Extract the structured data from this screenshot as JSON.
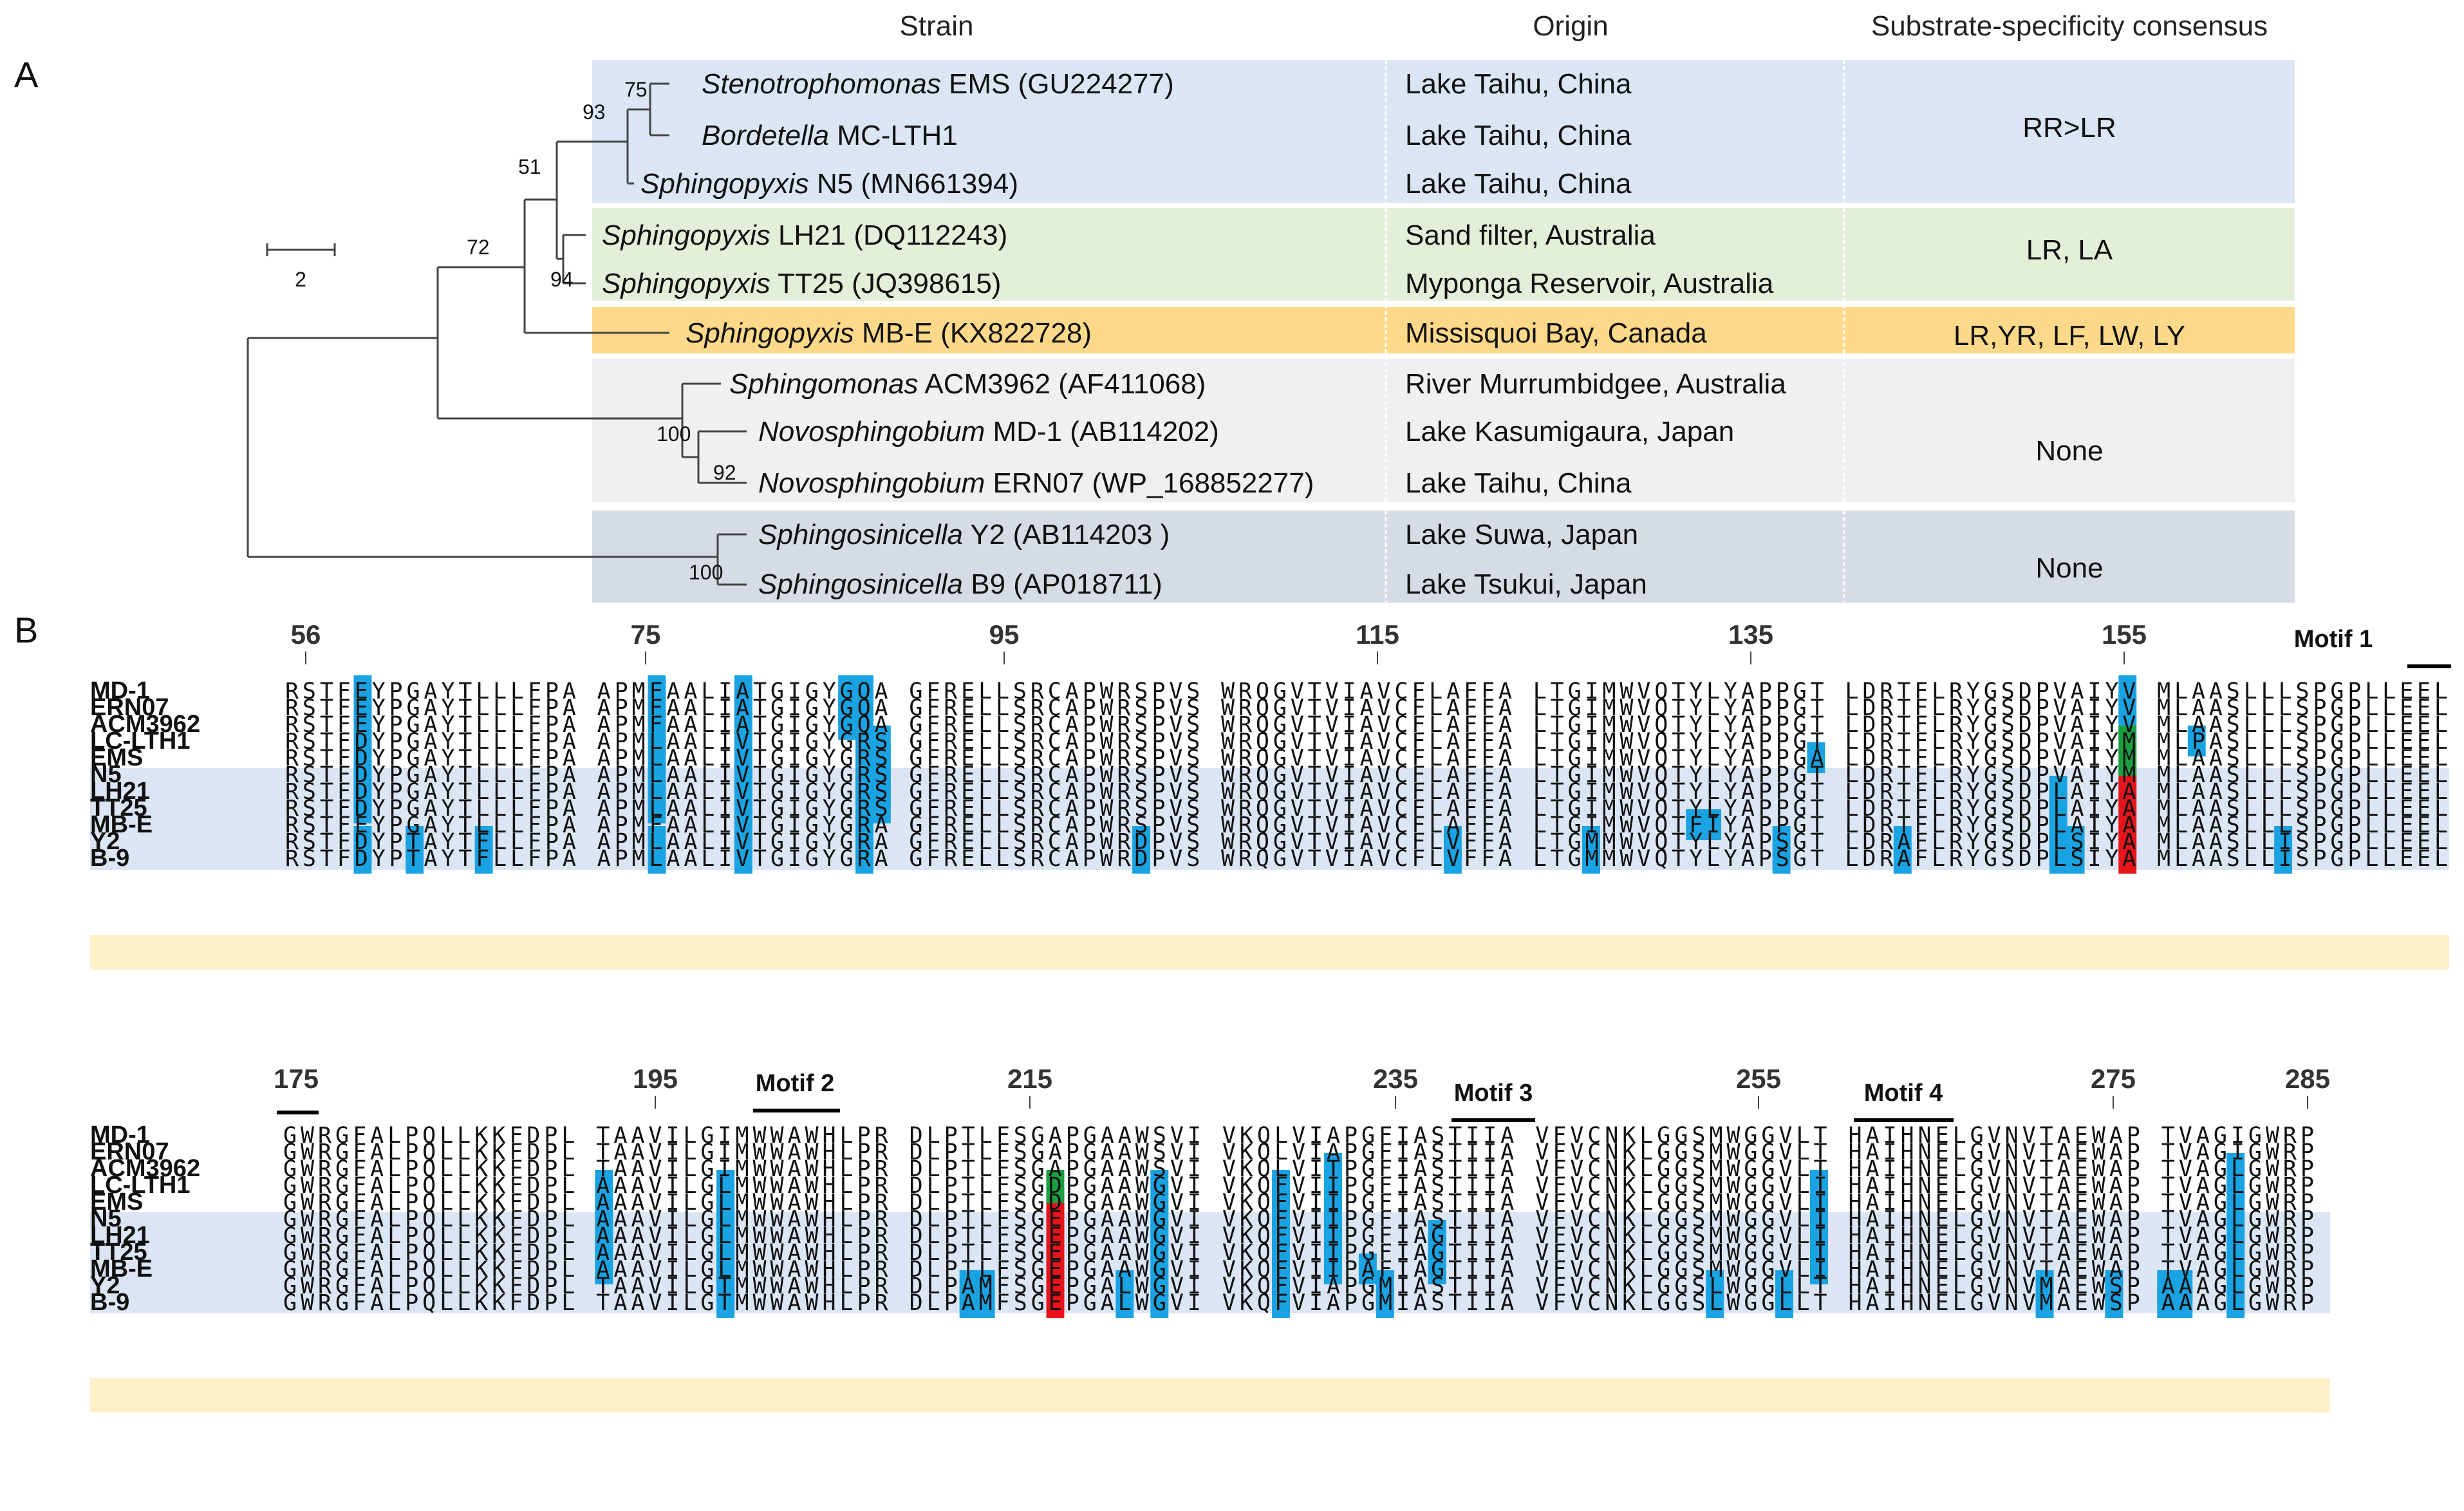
{
  "panels": {
    "a": "A",
    "b": "B"
  },
  "headers": {
    "strain": "Strain",
    "origin": "Origin",
    "substrate": "Substrate-specificity consensus"
  },
  "scale_bar": "2",
  "colors": {
    "blue_group": "#dbe5f4",
    "green_group": "#e3efd9",
    "orange_group": "#ffd98a",
    "gray_group": "#f0f0f0",
    "slate_group": "#d6dce4",
    "hl_blue": "#1aa3e3",
    "hl_green": "#1b9e3f",
    "hl_red": "#e8141b"
  },
  "groups": [
    {
      "consensus": "RR>LR"
    },
    {
      "consensus": "LR, LA"
    },
    {
      "consensus": "LR,YR, LF, LW, LY"
    },
    {
      "consensus": "None"
    },
    {
      "consensus": "None"
    }
  ],
  "strains": [
    {
      "genus": "Stenotrophomonas",
      "rest": " EMS (GU224277)",
      "origin": "Lake Taihu, China"
    },
    {
      "genus": "Bordetella",
      "rest": "  MC-LTH1",
      "origin": "Lake Taihu, China"
    },
    {
      "genus": "Sphingopyxis",
      "rest": " N5 (MN661394)",
      "origin": "Lake Taihu, China"
    },
    {
      "genus": "Sphingopyxis",
      "rest": "  LH21 (DQ112243)",
      "origin": "Sand filter, Australia"
    },
    {
      "genus": "Sphingopyxis",
      "rest": " TT25 (JQ398615)",
      "origin": "Myponga Reservoir, Australia"
    },
    {
      "genus": "Sphingopyxis",
      "rest": " MB-E (KX822728)",
      "origin": "Missisquoi Bay, Canada"
    },
    {
      "genus": "Sphingomonas",
      "rest": " ACM3962 (AF411068)",
      "origin": "River Murrumbidgee, Australia"
    },
    {
      "genus": "Novosphingobium",
      "rest": " MD-1 (AB114202)",
      "origin": "Lake Kasumigaura, Japan"
    },
    {
      "genus": "Novosphingobium",
      "rest": " ERN07 (WP_168852277)",
      "origin": "Lake Taihu, China"
    },
    {
      "genus": "Sphingosinicella",
      "rest": " Y2 (AB114203 )",
      "origin": "Lake Suwa, Japan"
    },
    {
      "genus": "Sphingosinicella",
      "rest": " B9 (AP018711)",
      "origin": "Lake Tsukui, Japan"
    }
  ],
  "bootstrap": [
    "75",
    "93",
    "51",
    "72",
    "94",
    "100",
    "92",
    "100"
  ],
  "alignment": {
    "block1": {
      "positions": [
        "56",
        "75",
        "95",
        "115",
        "135",
        "155"
      ],
      "motifs": [
        "Motif 1"
      ],
      "names": [
        "MD-1",
        "ERN07",
        "ACM3962",
        "LC-LTH1",
        "EMS",
        "N5",
        "LH21",
        "TT25",
        "MB-E",
        "Y2",
        "B-9"
      ],
      "rows": [
        "RSTFEYPGAYTLLLFPA APMFAALIATGIGYGQA GFRELLSRCAPWRSPVS WRQGVTVIAVCFLAFFA LTGIMWVQTYLYAPPGT LDRTFLRYGSDPVAIYV MLAASLLLSPGPLLEEL",
        "RSTFEYPGAYTLLLFPA APMFAALIATGIGYGQA GFRELLSRCAPWRSPVS WRQGVTVIAVCFLAFFA LTGIMWVQTYLYAPPGT LDRTFLRYGSDPVAIYV MLAASLLLSPGPLLEEL",
        "RSTFEYPGAYTLLLFPA APMFAALIATGIGYGQA GFRELLSRCAPWRSPVS WRQGVTVIAVCFLAFFA LTGIMWVQTYLYAPPGT LDRTFLRYGSDPVAIYV MLAASLLLSPGPLLEEL",
        "RSTFDYPGAYTLLLFPA APMLAALIVTGIGYGRS GFRELLSRCAPWRSPVS WRQGVTVIAVCFLAFFA LTGIMWVQTYLYAPPGT LDRTFLRYGSDPVAIYM MLPASLLLSPGPLLEEL",
        "RSTFDYPGAYTLLLFPA APMLAALIVTGIGYGRS GFRELLSRCAPWRSPVS WRQGVTVIAVCFLAFFA LTGIMWVQTYLYAPPGA LDRTFLRYGSDPVAIYM MLAASLLLSPGPLLEEL",
        "RSTFDYPGAYTLLLFPA APMLAALIVTGIGYGRS GFRELLSRCAPWRSPVS WRQGVTVIAVCFLAFFA LTGIMWVQTYLYAPPGT LDRTFLRYGSDPVAIYM MLAASLLLSPGPLLEEL",
        "RSTFDYPGAYTLLLFPA APMLAALIVTGIGYGRS GFRELLSRCAPWRSPVS WRQGVTVIAVCFLAFFA LTGIMWVQTYLYAPPGT LDRTFLRYGSDPLAIYA MLAASLLLSPGPLLEEL",
        "RSTFDYPGAYTLLLFPA APMLAALIVTGIGYGRS GFRELLSRCAPWRSPVS WRQGVTVIAVCFLAFFA LTGIMWVQTYLYAPPGT LDRTFLRYGSDPLAIYA MLAASLLLSPGPLLEEL",
        "RSTFEYPGAYTLLLFPA APMFAALIVTGIGYGRA GFRELLSRCAPWRSPVS WRQGVTVIAVCFLAFFA LTGIMWVQTFIYAPPGT LDRTFLRYGSDPLAIYA MLAASLLLSPGPLLEEL",
        "RSTFDYPTAYTFLLFPA APMLAALIVTGIGYGRA GFRELLSRCAPWRDPVS WRQGVTVIAVCFLVFFA LTGMMWVQTYLYAPSGT LDRAFLRYGSDPLSIYA MLAASLLISPGPLLEEL",
        "RSTFDYPTAYTFLLFPA APMLAALIVTGIGYGRA GFRELLSRCAPWRDPVS WRQGVTVIAVCFLVFFA LTGMMWVQTYLYAPSGT LDRAFLRYGSDPLSIYA MLAASLLISPGPLLEEL"
      ]
    },
    "block2": {
      "positions": [
        "175",
        "195",
        "215",
        "235",
        "255",
        "275",
        "285"
      ],
      "motifs": [
        "Motif 2",
        "Motif 3",
        "Motif 4"
      ],
      "names": [
        "MD-1",
        "ERN07",
        "ACM3962",
        "LC-LTH1",
        "EMS",
        "N5",
        "LH21",
        "TT25",
        "MB-E",
        "Y2",
        "B-9"
      ],
      "rows": [
        "GWRGFALPQLLKKFDPL TAAVILGIMWWAWHLPR DLPTLFSGAPGAAWSVI VKQLVIAPGFIASTIIA VFVCNKLGGSMWGGVLT HAIHNELGVNVTAEWAP TVAGIGWRP",
        "GWRGFALPQLLKKFDPL TAAVILGIMWWAWHLPR DLPTLFSGAPGAAWSVI VKQLVIAPGFIASTIIA VFVCNKLGGSMWGGVLT HAIHNELGVNVTAEWAP TVAGIGWRP",
        "GWRGFALPQLLKKFDPL TAAVILGIMWWAWHLPR DLPTLFSGAPGAAWSVI VKQLVITPGFIASTIIA VFVCNKLGGSMWGGVLT HAIHNELGVNVTAEWAP TVAGLGWRP",
        "GWRGFALPQLLKKFDPL AAAVILGLMWWAWHLPR DLPTLFSGDPGAAWGVI VKQFVIIPGFIASTIIA VFVCNKLGGSMWGGVLI HAIHNELGVNVTAEWAP TVAGLGWRP",
        "GWRGFALPQLLKKFDPL AAAVILGLMWWAWHLPR DLPTLFSGDPGAAWGVI VKQFVIIPGFIASTIIA VFVCNKLGGSMWGGVLI HAIHNELGVNVTAEWAP TVAGLGWRP",
        "GWRGFALPQLLKKFDPL AAAVILGLMWWAWHLPR DLPTLFSGEPGAAWGVI VKQFVIIPGFIASTIIA VFVCNKLGGSMWGGVLI HAIHNELGVNVTAEWAP TVAGLGWRP",
        "GWRGFALPQLLKKFDPL AAAVILGLMWWAWHLPR DLPTLFSGEPGAAWGVI VKQFVIIPGFIAGTIIA VFVCNKLGGSMWGGVLI HAIHNELGVNVTAEWAP TVAGLGWRP",
        "GWRGFALPQLLKKFDPL AAAVILGLMWWAWHLPR DLPTLFSGEPGAAWGVI VKQFVIIPGFIAGTIIA VFVCNKLGGSMWGGVLI HAIHNELGVNVTAEWAP TVAGLGWRP",
        "GWRGFALPQLLKKFDPL AAAVILGLMWWAWHLPR DLPTLFSGEPGAAWGVI VKQFVIIPAFIAGTIIA VFVCNKLGGSMWGGVLI HAIHNELGVNVTAEWAP TVAGLGWRP",
        "GWRGFALPQLLKKFDPL TAAVILGTMWWAWHLPR DLPAMFSGEPGALWGVI VKQFVIAPGMIASTIIA VFVCNKLGGSLWGGLLT HAIHNELGVNVMAEWSP AAAGLGWRP",
        "GWRGFALPQLLKKFDPL TAAVILGTMWWAWHLPR DLPAMFSGEPGALWGVI VKQFVIAPGMIASTIIA VFVCNKLGGSLWGGLLT HAIHNELGVNVMAEWSP AAAGLGWRP"
      ]
    }
  }
}
